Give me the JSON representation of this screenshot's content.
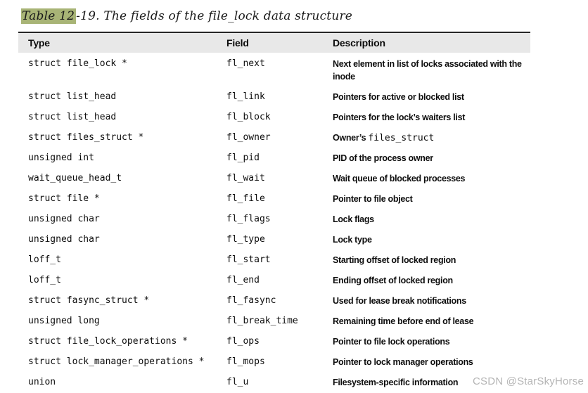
{
  "page": {
    "title_highlight": "Table 12",
    "title_rest": "-19. The fields of the file_lock data structure",
    "highlight_color": "#a8b476",
    "watermark": "CSDN @StarSkyHorse"
  },
  "table": {
    "headers": {
      "type": "Type",
      "field": "Field",
      "description": "Description"
    },
    "rows": [
      {
        "type": "struct file_lock *",
        "field": "fl_next",
        "desc": "Next element in list of locks associated with the inode"
      },
      {
        "type": "struct list_head",
        "field": "fl_link",
        "desc": "Pointers for active or blocked list"
      },
      {
        "type": "struct list_head",
        "field": "fl_block",
        "desc": "Pointers for the lock’s waiters list"
      },
      {
        "type": "struct files_struct *",
        "field": "fl_owner",
        "desc": "Owner’s ",
        "desc_code": "files_struct"
      },
      {
        "type": "unsigned int",
        "field": "fl_pid",
        "desc": "PID of the process owner"
      },
      {
        "type": "wait_queue_head_t",
        "field": "fl_wait",
        "desc": "Wait queue of blocked processes"
      },
      {
        "type": "struct file *",
        "field": "fl_file",
        "desc": "Pointer to file object"
      },
      {
        "type": "unsigned char",
        "field": "fl_flags",
        "desc": "Lock flags"
      },
      {
        "type": "unsigned char",
        "field": "fl_type",
        "desc": "Lock type"
      },
      {
        "type": "loff_t",
        "field": "fl_start",
        "desc": "Starting offset of locked region"
      },
      {
        "type": "loff_t",
        "field": "fl_end",
        "desc": "Ending offset of locked region"
      },
      {
        "type": "struct fasync_struct *",
        "field": "fl_fasync",
        "desc": "Used for lease break notifications"
      },
      {
        "type": "unsigned long",
        "field": "fl_break_time",
        "desc": "Remaining time before end of lease"
      },
      {
        "type": "struct file_lock_operations *",
        "field": "fl_ops",
        "desc": "Pointer to file lock operations"
      },
      {
        "type": "struct lock_manager_operations *",
        "field": "fl_mops",
        "desc": "Pointer to lock manager operations"
      },
      {
        "type": "union",
        "field": "fl_u",
        "desc": "Filesystem-specific information"
      }
    ]
  }
}
